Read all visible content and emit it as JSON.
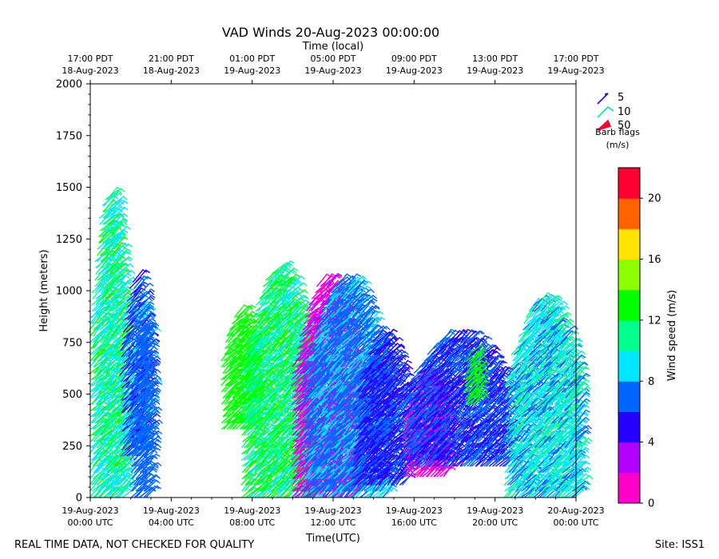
{
  "chart_data": {
    "type": "scatter",
    "title": "VAD Winds 20-Aug-2023 00:00:00",
    "top_axis_label": "Time (local)",
    "xlabel": "Time(UTC)",
    "ylabel": "Height (meters)",
    "ylim": [
      0,
      2000
    ],
    "xlim_hours_utc": [
      0,
      24
    ],
    "y_ticks": [
      0,
      250,
      500,
      750,
      1000,
      1250,
      1500,
      1750,
      2000
    ],
    "x_ticks_utc": [
      {
        "hour": 0,
        "line1": "19-Aug-2023",
        "line2": "00:00 UTC"
      },
      {
        "hour": 4,
        "line1": "19-Aug-2023",
        "line2": "04:00 UTC"
      },
      {
        "hour": 8,
        "line1": "19-Aug-2023",
        "line2": "08:00 UTC"
      },
      {
        "hour": 12,
        "line1": "19-Aug-2023",
        "line2": "12:00 UTC"
      },
      {
        "hour": 16,
        "line1": "19-Aug-2023",
        "line2": "16:00 UTC"
      },
      {
        "hour": 20,
        "line1": "19-Aug-2023",
        "line2": "20:00 UTC"
      },
      {
        "hour": 24,
        "line1": "20-Aug-2023",
        "line2": "00:00 UTC"
      }
    ],
    "x_ticks_local": [
      {
        "hour": 0,
        "line1": "17:00 PDT",
        "line2": "18-Aug-2023"
      },
      {
        "hour": 4,
        "line1": "21:00 PDT",
        "line2": "18-Aug-2023"
      },
      {
        "hour": 8,
        "line1": "01:00 PDT",
        "line2": "19-Aug-2023"
      },
      {
        "hour": 12,
        "line1": "05:00 PDT",
        "line2": "19-Aug-2023"
      },
      {
        "hour": 16,
        "line1": "09:00 PDT",
        "line2": "19-Aug-2023"
      },
      {
        "hour": 20,
        "line1": "13:00 PDT",
        "line2": "19-Aug-2023"
      },
      {
        "hour": 24,
        "line1": "17:00 PDT",
        "line2": "19-Aug-2023"
      }
    ],
    "colorbar": {
      "label": "Wind speed (m/s)",
      "min": 0,
      "max": 22,
      "step": 2,
      "ticks": [
        0,
        4,
        8,
        12,
        16,
        20
      ],
      "colors": [
        "#ff00cc",
        "#b400ff",
        "#2800ff",
        "#0064ff",
        "#00e6ff",
        "#00ff8c",
        "#00ff00",
        "#8cff00",
        "#ffe600",
        "#ff6400",
        "#ff0032"
      ]
    },
    "barb_legend": {
      "title_line1": "Barb flags",
      "title_line2": "(m/s)",
      "entries": [
        {
          "label": "5",
          "color": "#1a00d9"
        },
        {
          "label": "10",
          "color": "#00e6a0"
        },
        {
          "label": "50",
          "color": "#ff0032"
        }
      ]
    },
    "profiles": [
      {
        "start_hour": 0.0,
        "end_hour": 1.6,
        "top_m": 1470,
        "bottom_m": 0,
        "speed_low_ms": 8,
        "speed_high_ms": 13
      },
      {
        "start_hour": 1.5,
        "end_hour": 2.8,
        "top_m": 1050,
        "bottom_m": 200,
        "speed_low_ms": 4,
        "speed_high_ms": 9
      },
      {
        "start_hour": 2.0,
        "end_hour": 2.8,
        "top_m": 890,
        "bottom_m": 0,
        "speed_low_ms": 6,
        "speed_high_ms": 8
      },
      {
        "start_hour": 6.5,
        "end_hour": 8.0,
        "top_m": 900,
        "bottom_m": 330,
        "speed_low_ms": 12,
        "speed_high_ms": 14
      },
      {
        "start_hour": 7.5,
        "end_hour": 10.8,
        "top_m": 1100,
        "bottom_m": 0,
        "speed_low_ms": 9,
        "speed_high_ms": 14
      },
      {
        "start_hour": 10.0,
        "end_hour": 13.0,
        "top_m": 1050,
        "bottom_m": 0,
        "speed_low_ms": 0,
        "speed_high_ms": 4
      },
      {
        "start_hour": 10.5,
        "end_hour": 14.5,
        "top_m": 1050,
        "bottom_m": 0,
        "speed_low_ms": 6,
        "speed_high_ms": 9
      },
      {
        "start_hour": 13.0,
        "end_hour": 15.5,
        "top_m": 780,
        "bottom_m": 60,
        "speed_low_ms": 4,
        "speed_high_ms": 7
      },
      {
        "start_hour": 15.5,
        "end_hour": 17.5,
        "top_m": 600,
        "bottom_m": 100,
        "speed_low_ms": 0,
        "speed_high_ms": 3
      },
      {
        "start_hour": 15.5,
        "end_hour": 20.5,
        "top_m": 780,
        "bottom_m": 150,
        "speed_low_ms": 4,
        "speed_high_ms": 8
      },
      {
        "start_hour": 18.5,
        "end_hour": 19.0,
        "top_m": 700,
        "bottom_m": 450,
        "speed_low_ms": 12,
        "speed_high_ms": 14
      },
      {
        "start_hour": 20.5,
        "end_hour": 24.0,
        "top_m": 950,
        "bottom_m": 0,
        "speed_low_ms": 7,
        "speed_high_ms": 11
      }
    ]
  },
  "footer": {
    "note": "REAL TIME DATA, NOT CHECKED FOR QUALITY",
    "site": "Site: ISS1"
  }
}
